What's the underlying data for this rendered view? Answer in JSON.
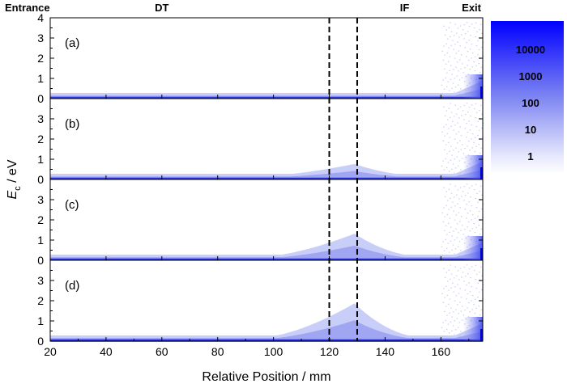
{
  "chart_data": {
    "type": "heatmap",
    "xlabel": "Relative Position / mm",
    "ylabel": {
      "main": "E",
      "subscript": "c",
      "unit": " / eV"
    },
    "xlim": [
      20,
      175
    ],
    "xticks": [
      20,
      40,
      60,
      80,
      100,
      120,
      140,
      160
    ],
    "ylim": [
      0,
      4
    ],
    "region_labels": [
      {
        "text": "Entrance",
        "x": 20
      },
      {
        "text": "DT",
        "x": 60
      },
      {
        "text": "IF",
        "x": 147
      },
      {
        "text": "Exit",
        "x": 170
      }
    ],
    "dashed_lines_x": [
      120,
      130
    ],
    "colorbar": {
      "ticks": [
        "10000",
        "1000",
        "100",
        "10",
        "1"
      ],
      "color": "#0000ff",
      "scale": "log"
    },
    "panels": [
      {
        "label": "(a)",
        "yticks": [
          0,
          1,
          2,
          3,
          4
        ],
        "peak_energy": 0.0
      },
      {
        "label": "(b)",
        "yticks": [
          0,
          1,
          2,
          3
        ],
        "peak_energy": 0.6
      },
      {
        "label": "(c)",
        "yticks": [
          0,
          1,
          2,
          3
        ],
        "peak_energy": 1.15
      },
      {
        "label": "(d)",
        "yticks": [
          0,
          1,
          2,
          3
        ],
        "peak_energy": 1.7
      }
    ]
  }
}
